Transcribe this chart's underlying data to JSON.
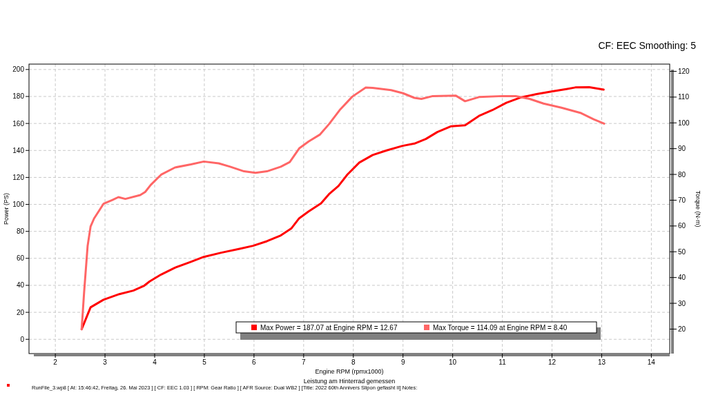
{
  "chart_data": {
    "type": "line",
    "subtitle": "CF: EEC Smoothing: 5",
    "xlabel": "Engine RPM (rpmx1000)",
    "ylabel": "Power (PS)",
    "y2label": "Torque (N·m)",
    "annotations": [
      "Leistung am Hinterrad gemessen",
      "RunFile_3.wp8 [ At: 15:46:42, Freitag, 26. Mai 2023 ] [ CF: EEC 1.03 ] [ RPM: Gear Ratio ] [ AFR Source: Dual WB2 ] [Title: 2022 60th Annivers Slipon geflasht II]  Notes:"
    ],
    "xlim": [
      1.47,
      14.37
    ],
    "xticks": [
      2,
      3,
      4,
      5,
      6,
      7,
      8,
      9,
      10,
      11,
      12,
      13,
      14
    ],
    "ylim": [
      -10.6,
      204
    ],
    "yticks": [
      0,
      20,
      40,
      60,
      80,
      100,
      120,
      140,
      160,
      180,
      200
    ],
    "y2lim": [
      10.5,
      122.8
    ],
    "y2ticks": [
      20,
      30,
      40,
      50,
      60,
      70,
      80,
      90,
      100,
      110,
      120
    ],
    "grid": true,
    "legend": "bottom",
    "line_style": "solid",
    "marker": "none",
    "series": [
      {
        "name": "Max Power = 187.07 at Engine RPM = 12.67",
        "color": "#ff0000",
        "x": [
          2.53,
          2.71,
          2.97,
          3.29,
          3.57,
          3.78,
          3.9,
          4.13,
          4.41,
          4.73,
          4.99,
          5.34,
          5.71,
          5.98,
          6.26,
          6.54,
          6.75,
          6.91,
          7.1,
          7.35,
          7.51,
          7.7,
          7.88,
          8.12,
          8.39,
          8.67,
          8.99,
          9.23,
          9.46,
          9.69,
          9.97,
          10.25,
          10.53,
          10.8,
          11.08,
          11.36,
          11.69,
          12.01,
          12.29,
          12.47,
          12.75,
          13.04
        ],
        "values": [
          7.5,
          23.7,
          29.3,
          33.5,
          36.1,
          39.5,
          42.9,
          48.0,
          53.1,
          57.4,
          61.1,
          64.2,
          67.1,
          69.3,
          72.7,
          77.0,
          82.1,
          89.7,
          94.8,
          100.8,
          107.6,
          113.6,
          122.1,
          131.0,
          136.6,
          140.0,
          143.4,
          145.1,
          148.5,
          153.6,
          157.9,
          158.7,
          165.6,
          169.9,
          175.3,
          179.2,
          181.8,
          183.8,
          185.5,
          186.7,
          186.9,
          185.1
        ]
      },
      {
        "name": "Max Torque = 114.09 at Engine RPM = 8.40",
        "color": "#ff6666",
        "axis": "y2",
        "x": [
          2.53,
          2.58,
          2.65,
          2.71,
          2.78,
          2.97,
          3.15,
          3.27,
          3.41,
          3.71,
          3.81,
          3.92,
          4.13,
          4.41,
          4.73,
          4.99,
          5.29,
          5.52,
          5.8,
          6.03,
          6.26,
          6.54,
          6.72,
          6.91,
          7.1,
          7.33,
          7.51,
          7.74,
          7.98,
          8.25,
          8.39,
          8.76,
          9.0,
          9.23,
          9.37,
          9.6,
          10.06,
          10.25,
          10.53,
          11.0,
          11.27,
          11.55,
          11.83,
          12.19,
          12.57,
          12.84,
          13.05
        ],
        "values": [
          19.9,
          34.4,
          52.2,
          59.8,
          62.9,
          68.6,
          70.1,
          71.2,
          70.5,
          72.0,
          73.2,
          75.9,
          79.9,
          82.7,
          83.9,
          85.0,
          84.3,
          83.0,
          81.2,
          80.6,
          81.2,
          83.0,
          84.8,
          90.1,
          92.8,
          95.5,
          99.5,
          105.3,
          110.2,
          113.7,
          113.6,
          112.7,
          111.5,
          109.7,
          109.3,
          110.4,
          110.6,
          108.4,
          110.0,
          110.4,
          110.4,
          109.3,
          107.5,
          105.9,
          103.9,
          101.4,
          99.7
        ]
      }
    ]
  }
}
